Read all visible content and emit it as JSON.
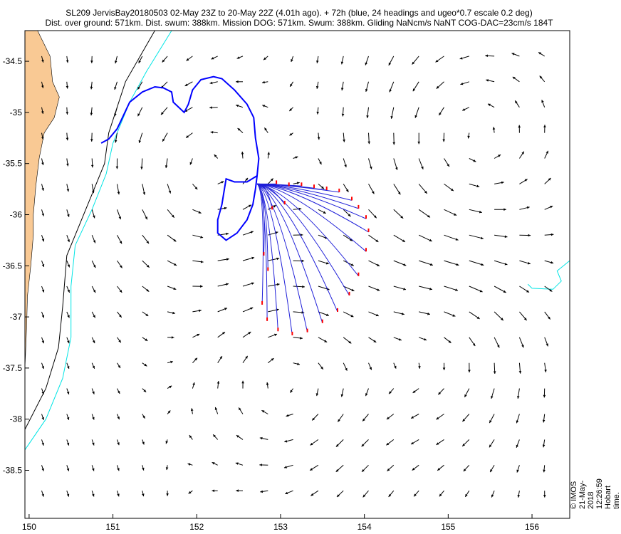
{
  "header": {
    "line1": "SL209 JervisBay20180503 02-May 23Z to 20-May 22Z (4.01h ago). + 72h (blue, 24 headings and ugeo*0.7 escale 0.2 deg)",
    "line2": "Dist. over ground: 571km. Dist. swum: 388km. Mission DOG: 571km. Swum: 388km. Gliding NaNcm/s NaNT COG-DAC=23cm/s 184T"
  },
  "footer": {
    "stamp": "© IMOS 21-May-2018 12:26:59 Hobart time."
  },
  "chart_data": {
    "type": "map",
    "x_ticks": [
      "150",
      "151",
      "152",
      "153",
      "154",
      "155",
      "156"
    ],
    "y_ticks": [
      "-34.5",
      "-35",
      "-35.5",
      "-36",
      "-36.5",
      "-37",
      "-37.5",
      "-38",
      "-38.5"
    ],
    "xlim": [
      149.95,
      156.45
    ],
    "ylim": [
      -38.97,
      -34.2
    ],
    "colors": {
      "land": "#f9c994",
      "glider_track": "#0000ff",
      "forecast_paths": "#1f1fd8",
      "forecast_endpoints": "#ff0000",
      "isobath_inner": "#000000",
      "isobath_outer": "#00e5e5",
      "current_vectors": "#000000"
    },
    "glider_track": [
      [
        150.86,
        -35.3
      ],
      [
        150.95,
        -35.26
      ],
      [
        151.05,
        -35.16
      ],
      [
        151.2,
        -34.9
      ],
      [
        151.35,
        -34.8
      ],
      [
        151.5,
        -34.75
      ],
      [
        151.6,
        -34.76
      ],
      [
        151.7,
        -34.8
      ],
      [
        151.72,
        -34.9
      ],
      [
        151.85,
        -35.0
      ],
      [
        151.9,
        -34.92
      ],
      [
        151.95,
        -34.78
      ],
      [
        152.05,
        -34.68
      ],
      [
        152.2,
        -34.65
      ],
      [
        152.3,
        -34.67
      ],
      [
        152.45,
        -34.78
      ],
      [
        152.6,
        -34.92
      ],
      [
        152.68,
        -35.05
      ],
      [
        152.7,
        -35.25
      ],
      [
        152.74,
        -35.45
      ],
      [
        152.72,
        -35.62
      ],
      [
        152.6,
        -35.68
      ],
      [
        152.45,
        -35.68
      ],
      [
        152.35,
        -35.65
      ],
      [
        152.33,
        -35.75
      ],
      [
        152.3,
        -35.9
      ],
      [
        152.25,
        -36.05
      ],
      [
        152.25,
        -36.18
      ],
      [
        152.35,
        -36.25
      ],
      [
        152.48,
        -36.18
      ],
      [
        152.6,
        -36.05
      ],
      [
        152.67,
        -35.9
      ],
      [
        152.7,
        -35.75
      ],
      [
        152.72,
        -35.62
      ]
    ],
    "forecast_origin": [
      152.72,
      -35.7
    ],
    "forecast_endpoints": [
      [
        153.85,
        -35.86
      ],
      [
        153.93,
        -35.94
      ],
      [
        154.02,
        -36.04
      ],
      [
        154.05,
        -36.17
      ],
      [
        154.02,
        -36.36
      ],
      [
        153.93,
        -36.6
      ],
      [
        153.82,
        -36.79
      ],
      [
        153.68,
        -36.95
      ],
      [
        153.5,
        -37.06
      ],
      [
        153.32,
        -37.15
      ],
      [
        153.14,
        -37.18
      ],
      [
        152.97,
        -37.14
      ],
      [
        152.84,
        -37.04
      ],
      [
        152.78,
        -36.88
      ],
      [
        153.7,
        -35.78
      ],
      [
        153.55,
        -35.76
      ],
      [
        153.4,
        -35.74
      ],
      [
        153.25,
        -35.72
      ],
      [
        153.1,
        -35.72
      ],
      [
        152.95,
        -35.7
      ],
      [
        152.85,
        -36.55
      ],
      [
        152.8,
        -36.4
      ],
      [
        152.9,
        -35.95
      ],
      [
        153.05,
        -35.9
      ]
    ],
    "current_field": "mesoscale eddy field, arrows show surface geostrophic velocity direction"
  }
}
